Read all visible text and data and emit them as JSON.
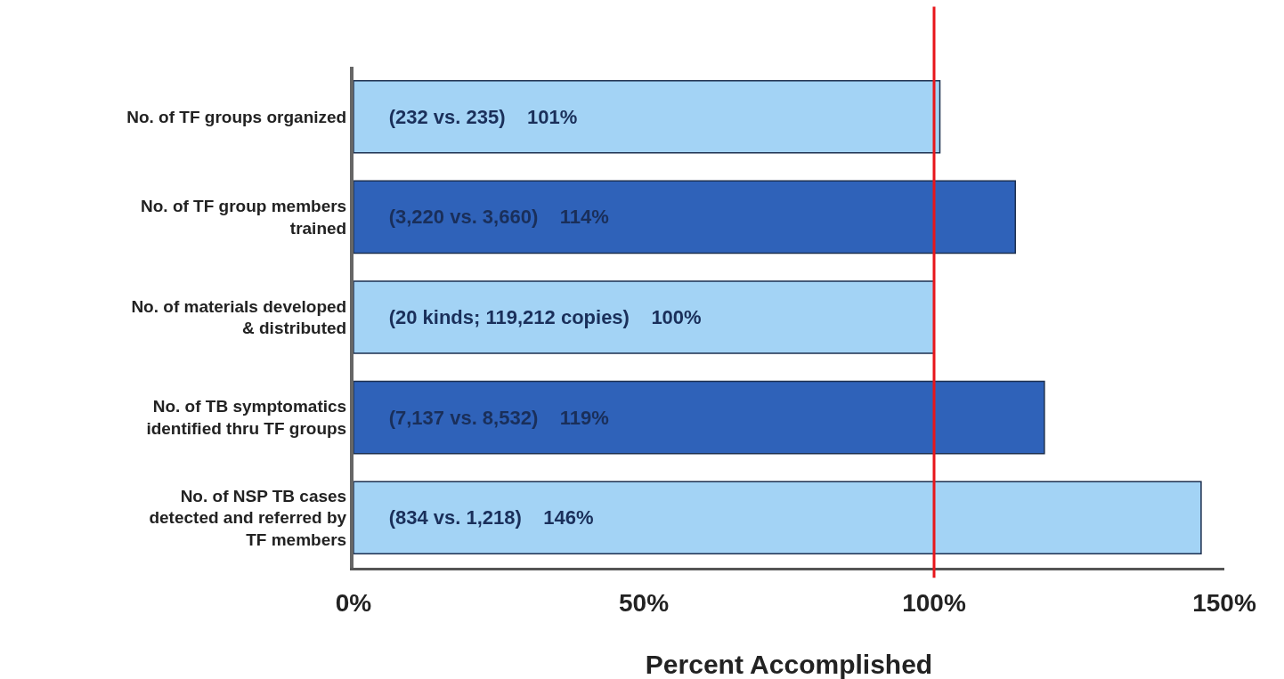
{
  "chart_data": {
    "type": "bar",
    "orientation": "horizontal",
    "xlabel": "Percent Accomplished",
    "categories": [
      "No. of TF groups organized",
      "No. of TF group members\ntrained",
      "No. of materials developed\n& distributed",
      "No. of TB symptomatics\nidentified thru TF groups",
      "No. of NSP TB cases\ndetected and referred by\nTF members"
    ],
    "values": [
      101,
      114,
      100,
      119,
      146
    ],
    "colors": [
      "#a3d3f5",
      "#2f62b9",
      "#a3d3f5",
      "#2f62b9",
      "#a3d3f5"
    ],
    "value_labels": [
      "(232 vs. 235)    101%",
      "(3,220 vs. 3,660)    114%",
      "(20 kinds; 119,212 copies)    100%",
      "(7,137 vs. 8,532)    119%",
      "(834 vs. 1,218)    146%"
    ],
    "xlim": [
      0,
      150
    ],
    "xticks": [
      {
        "value": 0,
        "label": "0%"
      },
      {
        "value": 50,
        "label": "50%"
      },
      {
        "value": 100,
        "label": "100%"
      },
      {
        "value": 150,
        "label": "150%"
      }
    ],
    "ref_lines": [
      {
        "axis": "x",
        "value": 100,
        "color": "#e8161b"
      }
    ]
  }
}
